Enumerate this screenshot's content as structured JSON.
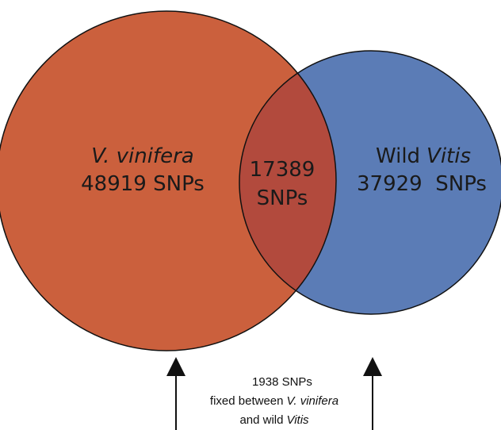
{
  "sets": [
    {
      "name": "V. vinifera",
      "count": "48919 SNPs"
    },
    {
      "name_parts": [
        "Wild",
        "Vitis"
      ],
      "count": "37929  SNPs"
    }
  ],
  "intersection": {
    "lines": [
      "17389",
      "SNPs"
    ]
  },
  "annotation": {
    "line1": "1938 SNPs",
    "line2_parts": [
      "fixed between",
      "V. vinifera"
    ],
    "line3_parts": [
      "and wild",
      "Vitis"
    ]
  }
}
